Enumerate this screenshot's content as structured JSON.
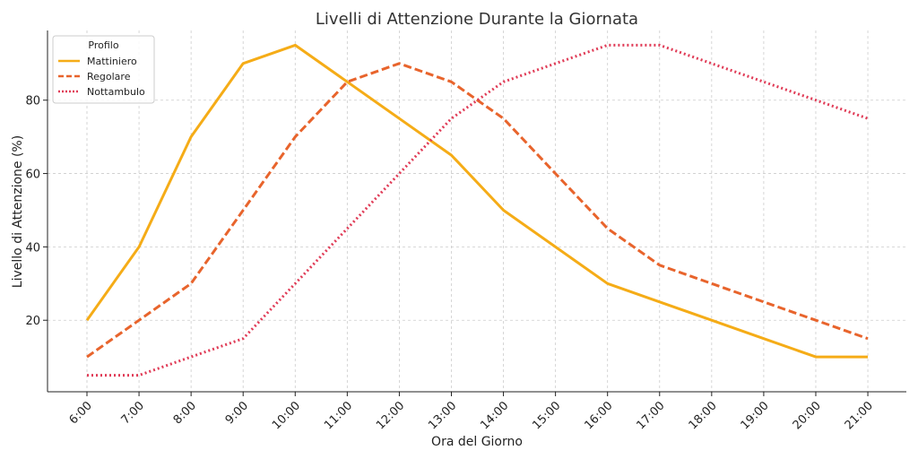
{
  "chart_data": {
    "type": "line",
    "title": "Livelli di Attenzione Durante la Giornata",
    "xlabel": "Ora del Giorno",
    "ylabel": "Livello di Attenzione (%)",
    "categories": [
      "6:00",
      "7:00",
      "8:00",
      "9:00",
      "10:00",
      "11:00",
      "12:00",
      "13:00",
      "14:00",
      "15:00",
      "16:00",
      "17:00",
      "18:00",
      "19:00",
      "20:00",
      "21:00"
    ],
    "yticks": [
      20,
      40,
      60,
      80
    ],
    "ylim": [
      0.5,
      99
    ],
    "grid": true,
    "legend": {
      "title": "Profilo",
      "placement": "top-left"
    },
    "series": [
      {
        "name": "Mattiniero",
        "color": "#f5ac17",
        "dash": "solid",
        "values": [
          20,
          40,
          70,
          90,
          95,
          85,
          75,
          65,
          50,
          40,
          30,
          25,
          20,
          15,
          10,
          10
        ]
      },
      {
        "name": "Regolare",
        "color": "#e8642c",
        "dash": "dashed",
        "values": [
          10,
          20,
          30,
          50,
          70,
          85,
          90,
          85,
          75,
          60,
          45,
          35,
          30,
          25,
          20,
          15
        ]
      },
      {
        "name": "Nottambulo",
        "color": "#e03c57",
        "dash": "dotted",
        "values": [
          5,
          5,
          10,
          15,
          30,
          45,
          60,
          75,
          85,
          90,
          95,
          95,
          90,
          85,
          80,
          75
        ]
      }
    ]
  }
}
